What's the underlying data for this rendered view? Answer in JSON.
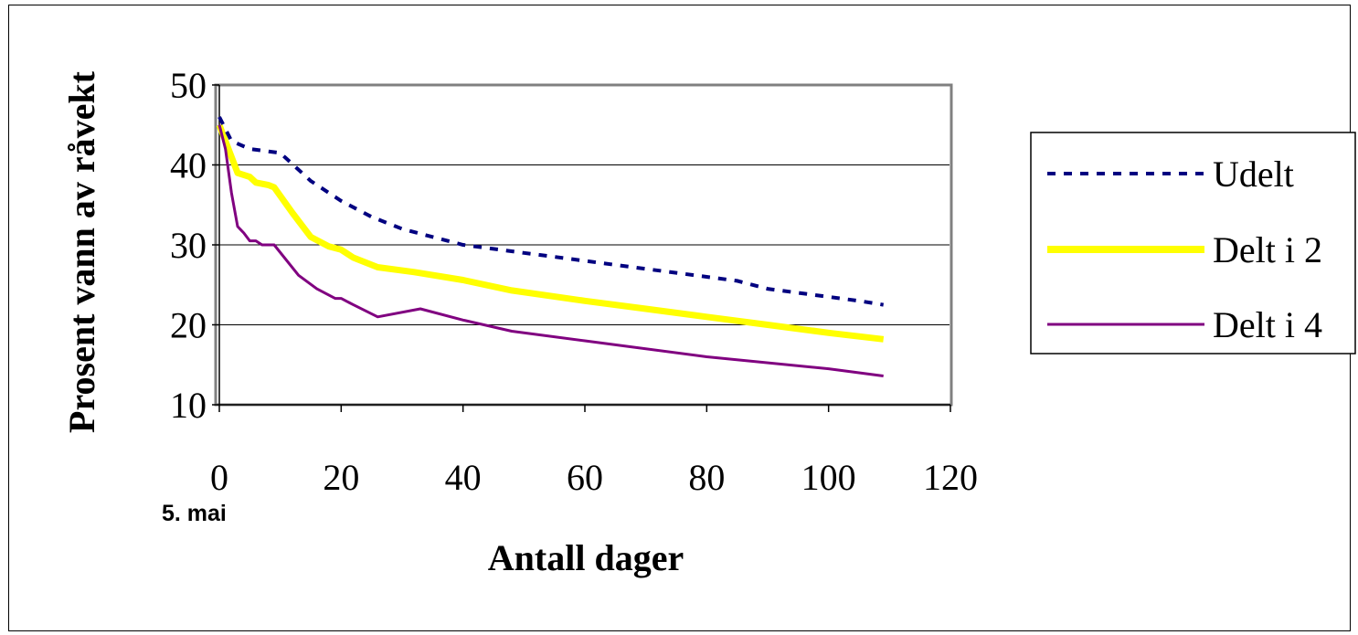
{
  "chart_data": {
    "type": "line",
    "title": "",
    "xlabel": "Antall dager",
    "ylabel": "Prosent vann av råvekt",
    "x_annotation": "5. mai",
    "xlim": [
      0,
      120
    ],
    "ylim": [
      10,
      50
    ],
    "xticks": [
      "0",
      "20",
      "40",
      "60",
      "80",
      "100",
      "120"
    ],
    "yticks": [
      "10",
      "20",
      "30",
      "40",
      "50"
    ],
    "grid": "horizontal",
    "legend_position": "right",
    "series": [
      {
        "name": "Udelt",
        "color": "#000080",
        "style": "dotted",
        "x": [
          0,
          2,
          5,
          10,
          15,
          20,
          25,
          30,
          35,
          40,
          45,
          50,
          55,
          60,
          65,
          70,
          75,
          80,
          85,
          90,
          95,
          100,
          105,
          109
        ],
        "y": [
          46,
          43,
          42,
          41.5,
          38,
          35.5,
          33.5,
          32,
          31,
          30,
          29.5,
          29,
          28.5,
          28,
          27.5,
          27,
          26.5,
          26,
          25.5,
          24.5,
          24,
          23.5,
          23,
          22.5
        ]
      },
      {
        "name": "Delt i 2",
        "color": "#ffff00",
        "style": "solid-thick",
        "x": [
          0,
          3,
          5,
          6,
          8,
          9,
          12,
          15,
          18,
          20,
          22,
          26,
          32,
          40,
          48,
          60,
          70,
          80,
          90,
          100,
          109
        ],
        "y": [
          45,
          39,
          38.5,
          37.8,
          37.5,
          37.2,
          34,
          31,
          29.8,
          29.4,
          28.4,
          27.2,
          26.6,
          25.6,
          24.3,
          23,
          22,
          21,
          20,
          19,
          18.2
        ]
      },
      {
        "name": "Delt i 4",
        "color": "#800080",
        "style": "solid",
        "x": [
          0,
          1,
          2,
          3,
          4,
          5,
          6,
          7,
          8,
          9,
          13,
          16,
          19,
          20,
          22,
          26,
          33,
          40,
          48,
          60,
          80,
          100,
          109
        ],
        "y": [
          45,
          42,
          36.5,
          32.3,
          31.5,
          30.5,
          30.5,
          30,
          30,
          30,
          26.2,
          24.5,
          23.3,
          23.3,
          22.5,
          21,
          22,
          20.6,
          19.2,
          18,
          16,
          14.5,
          13.6
        ]
      }
    ]
  }
}
